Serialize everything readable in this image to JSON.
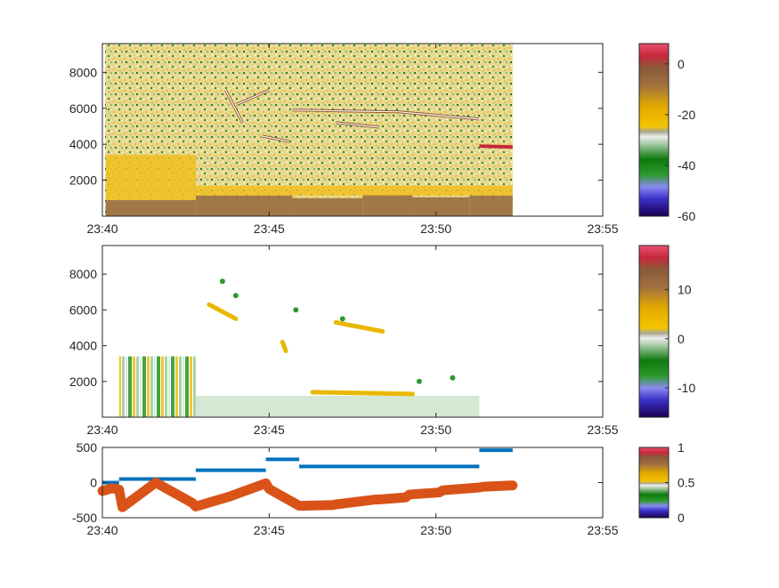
{
  "colors": {
    "spectrogram_scale": [
      "#1a0050",
      "#3a30c8",
      "#8a8af0",
      "#2e9a2e",
      "#0d7a0d",
      "#e0e0e0",
      "#f5c400",
      "#e0a800",
      "#a07040",
      "#8a5a3a",
      "#c8283c",
      "#e85070"
    ],
    "line_blue": "#0072bd",
    "line_orange": "#d95319",
    "background_noise": "#c8c890",
    "band_gold": "#f0c020",
    "band_brown": "#a07848"
  },
  "chart_data": [
    {
      "type": "heatmap",
      "name_key": "panel-1",
      "x_tick_labels": [
        "23:40",
        "23:45",
        "23:50",
        "23:55"
      ],
      "x_ticks": [
        0,
        5,
        10,
        15
      ],
      "xlim": [
        0,
        15
      ],
      "data_end_x": 12.3,
      "y_ticks": [
        2000,
        4000,
        6000,
        8000
      ],
      "ylim": [
        0,
        9600
      ],
      "colorbar": {
        "ticks": [
          -60,
          -40,
          -20,
          0
        ],
        "range": [
          -60,
          8
        ]
      },
      "features": [
        {
          "label": "brown floor band",
          "segments": [
            [
              0.1,
              0,
              2.8,
              900
            ],
            [
              2.8,
              0,
              5.7,
              1150
            ],
            [
              5.7,
              0,
              7.8,
              1000
            ],
            [
              7.8,
              0,
              9.3,
              1200
            ],
            [
              9.3,
              0,
              11.0,
              1050
            ],
            [
              11.0,
              0,
              12.3,
              1150
            ]
          ]
        },
        {
          "label": "gold band",
          "segments": [
            [
              0.1,
              900,
              2.8,
              3400
            ],
            [
              2.8,
              1150,
              12.3,
              1700
            ]
          ]
        },
        {
          "label": "red trace",
          "points": [
            [
              11.3,
              3900
            ],
            [
              12.3,
              3850
            ]
          ]
        },
        {
          "label": "trace-1",
          "points": [
            [
              5.7,
              5900
            ],
            [
              8.9,
              5800
            ],
            [
              11.3,
              5400
            ]
          ]
        },
        {
          "label": "trace-2",
          "points": [
            [
              7.0,
              5200
            ],
            [
              8.3,
              4950
            ]
          ]
        },
        {
          "label": "trace-3",
          "points": [
            [
              4.8,
              4450
            ],
            [
              5.6,
              4150
            ]
          ]
        },
        {
          "label": "trace-4",
          "points": [
            [
              3.7,
              7000
            ],
            [
              4.2,
              5200
            ]
          ]
        },
        {
          "label": "trace-5",
          "points": [
            [
              4.0,
              6200
            ],
            [
              5.0,
              7000
            ]
          ]
        }
      ]
    },
    {
      "type": "heatmap",
      "name_key": "panel-2",
      "x_tick_labels": [
        "23:40",
        "23:45",
        "23:50",
        "23:55"
      ],
      "x_ticks": [
        0,
        5,
        10,
        15
      ],
      "xlim": [
        0,
        15
      ],
      "data_end_x": 11.3,
      "y_ticks": [
        2000,
        4000,
        6000,
        8000
      ],
      "ylim": [
        0,
        9600
      ],
      "colorbar": {
        "ticks": [
          -10,
          0,
          10
        ],
        "range": [
          -16,
          19
        ]
      },
      "features": [
        {
          "label": "striped band",
          "x_range": [
            0.5,
            2.8
          ],
          "y_range": [
            0,
            3400
          ]
        },
        {
          "label": "pale green band",
          "x_range": [
            2.8,
            11.3
          ],
          "y_range": [
            0,
            1200
          ]
        },
        {
          "label": "gold blob-1",
          "points": [
            [
              3.2,
              6300
            ],
            [
              4.0,
              5500
            ]
          ]
        },
        {
          "label": "gold blob-2",
          "points": [
            [
              7.0,
              5300
            ],
            [
              8.4,
              4800
            ]
          ]
        },
        {
          "label": "gold blob-3",
          "points": [
            [
              5.4,
              4200
            ],
            [
              5.5,
              3700
            ]
          ]
        },
        {
          "label": "gold band",
          "points": [
            [
              6.3,
              1400
            ],
            [
              9.3,
              1300
            ]
          ]
        }
      ]
    },
    {
      "type": "line",
      "name_key": "panel-3",
      "x_tick_labels": [
        "23:40",
        "23:45",
        "23:50",
        "23:55"
      ],
      "x_ticks": [
        0,
        5,
        10,
        15
      ],
      "xlim": [
        0,
        15
      ],
      "y_ticks": [
        -500,
        0,
        500
      ],
      "ylim": [
        -500,
        500
      ],
      "colorbar": {
        "ticks": [
          0,
          0.5,
          1
        ],
        "range": [
          0,
          1
        ]
      },
      "series": [
        {
          "color": "#0072bd",
          "style": "steps",
          "segments": [
            [
              0,
              0.5,
              0
            ],
            [
              0.5,
              2.8,
              50
            ],
            [
              2.8,
              4.9,
              175
            ],
            [
              4.9,
              5.9,
              330
            ],
            [
              5.9,
              11.3,
              230
            ],
            [
              11.3,
              12.3,
              460
            ]
          ]
        },
        {
          "color": "#d95319",
          "style": "thick",
          "x": [
            0,
            0.3,
            0.5,
            0.6,
            1.6,
            2.7,
            2.8,
            3.8,
            4.9,
            5.0,
            5.9,
            6.9,
            7.0,
            8.2,
            8.3,
            9.1,
            9.2,
            10.1,
            10.2,
            11.3,
            11.4,
            12.3
          ],
          "y": [
            -120,
            -80,
            -100,
            -350,
            0,
            -290,
            -340,
            -200,
            -10,
            -90,
            -330,
            -320,
            -310,
            -240,
            -240,
            -210,
            -170,
            -140,
            -110,
            -70,
            -60,
            -40
          ]
        }
      ]
    }
  ]
}
